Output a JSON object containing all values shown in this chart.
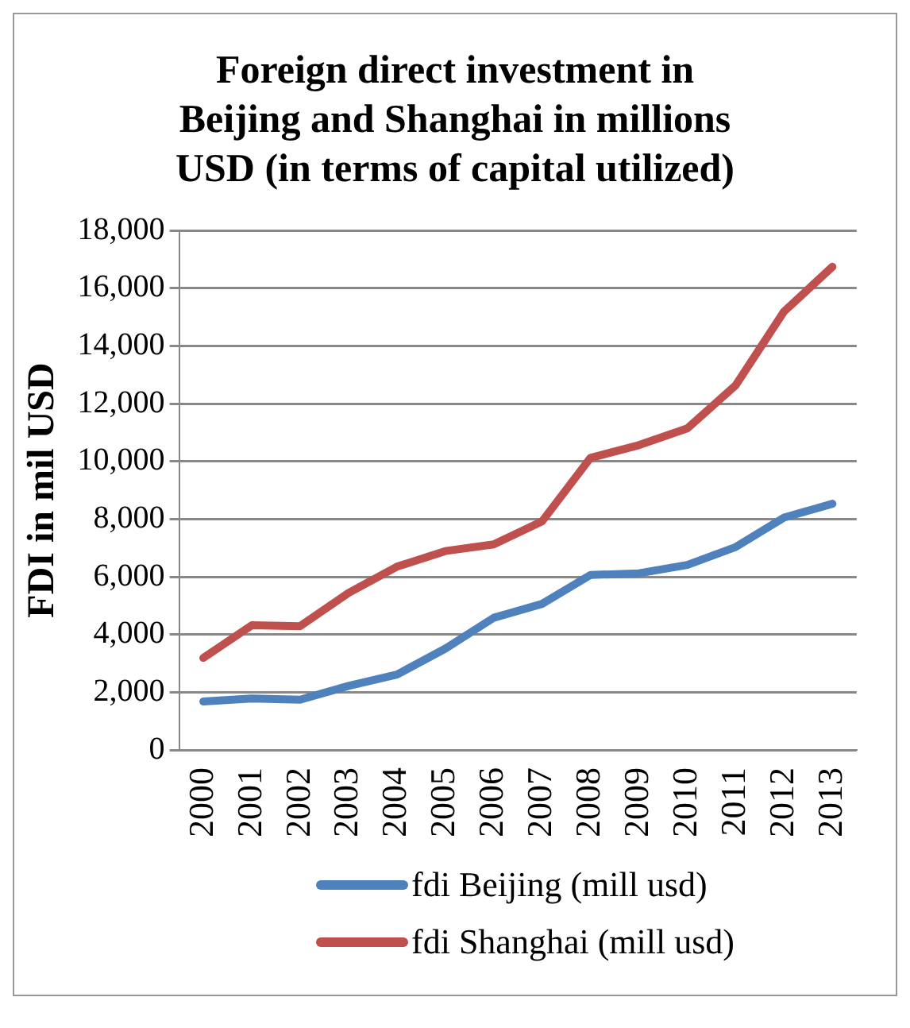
{
  "chart_data": {
    "type": "line",
    "title": "Foreign direct investment in Beijing and Shanghai in millions USD (in terms of capital utilized)",
    "ylabel": "FDI in mil USD",
    "categories": [
      "2000",
      "2001",
      "2002",
      "2003",
      "2004",
      "2005",
      "2006",
      "2007",
      "2008",
      "2009",
      "2010",
      "2011",
      "2012",
      "2013"
    ],
    "series": [
      {
        "name": "fdi Beijing (mill usd)",
        "color": "#4f81bd",
        "values": [
          1680,
          1780,
          1740,
          2220,
          2610,
          3510,
          4580,
          5060,
          6060,
          6120,
          6410,
          7030,
          8050,
          8530
        ]
      },
      {
        "name": "fdi Shanghai (mill usd)",
        "color": "#c0504d",
        "values": [
          3190,
          4320,
          4290,
          5440,
          6350,
          6890,
          7120,
          7920,
          10120,
          10560,
          11140,
          12630,
          15190,
          16740
        ]
      }
    ],
    "ylim": [
      0,
      18000
    ],
    "yticks": [
      0,
      {
        "value": 2000,
        "label": "2,000"
      },
      {
        "value": 4000,
        "label": "4,000"
      },
      {
        "value": 6000,
        "label": "6,000"
      },
      {
        "value": 8000,
        "label": "8,000"
      },
      {
        "value": 10000,
        "label": "10,000"
      },
      {
        "value": 12000,
        "label": "12,000"
      },
      {
        "value": 14000,
        "label": "14,000"
      },
      {
        "value": 16000,
        "label": "16,000"
      },
      {
        "value": 18000,
        "label": "18,000"
      }
    ],
    "grid": "y",
    "legend": "bottom",
    "marker": "none",
    "line_style": "solid"
  }
}
